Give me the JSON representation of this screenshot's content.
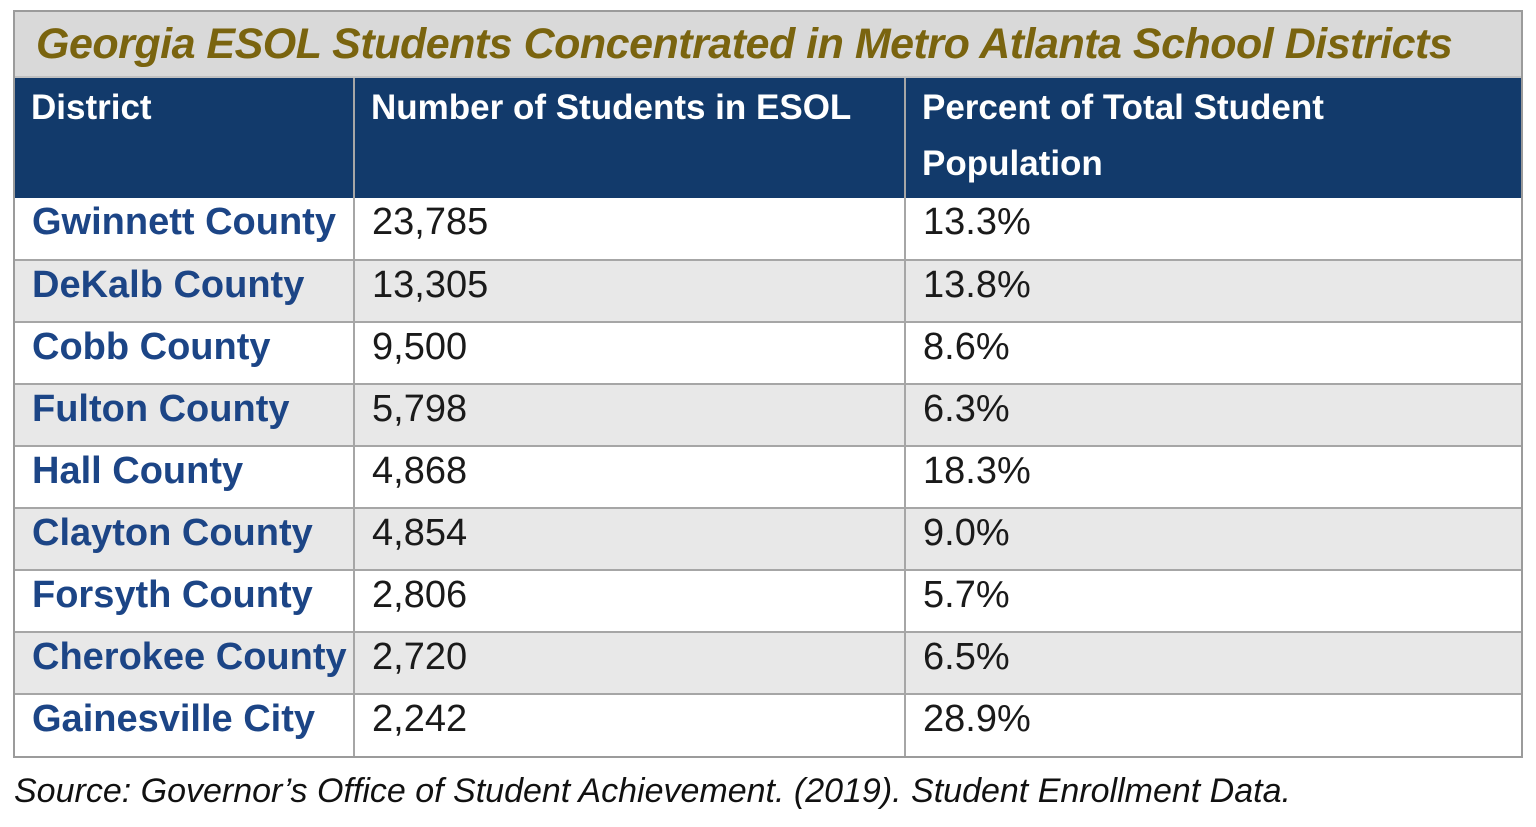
{
  "chart_data": {
    "type": "table",
    "title": "Georgia ESOL Students Concentrated in Metro Atlanta School Districts",
    "columns": [
      "District",
      "Number of Students in ESOL",
      "Percent of Total Student Population"
    ],
    "rows": [
      {
        "district": "Gwinnett County",
        "students_esol": "23,785",
        "percent_total": "13.3%"
      },
      {
        "district": "DeKalb County",
        "students_esol": "13,305",
        "percent_total": "13.8%"
      },
      {
        "district": "Cobb County",
        "students_esol": "9,500",
        "percent_total": "8.6%"
      },
      {
        "district": "Fulton County",
        "students_esol": "5,798",
        "percent_total": "6.3%"
      },
      {
        "district": "Hall County",
        "students_esol": "4,868",
        "percent_total": "18.3%"
      },
      {
        "district": "Clayton County",
        "students_esol": "4,854",
        "percent_total": "9.0%"
      },
      {
        "district": "Forsyth County",
        "students_esol": "2,806",
        "percent_total": "5.7%"
      },
      {
        "district": "Cherokee County",
        "students_esol": "2,720",
        "percent_total": "6.5%"
      },
      {
        "district": "Gainesville City",
        "students_esol": "2,242",
        "percent_total": "28.9%"
      }
    ],
    "values_numeric": {
      "students_esol": [
        23785,
        13305,
        9500,
        5798,
        4868,
        4854,
        2806,
        2720,
        2242
      ],
      "percent_total": [
        13.3,
        13.8,
        8.6,
        6.3,
        18.3,
        9.0,
        5.7,
        6.5,
        28.9
      ]
    },
    "source": "Source: Governor’s Office of Student Achievement. (2019). Student Enrollment Data.",
    "layout": {
      "legend": "none",
      "row_banding": "alternating white / light gray",
      "header_lines_col3": 2
    }
  },
  "colors": {
    "title_text": "#7a640f",
    "title_bg": "#d9d9d9",
    "header_bg": "#123a6b",
    "header_text": "#ffffff",
    "district_text": "#1c4586",
    "body_text": "#1a1a1a",
    "row_alt_bg": "#e8e8e8",
    "grid_line": "#a6a6a6",
    "outer_border": "#9b9b9b"
  }
}
